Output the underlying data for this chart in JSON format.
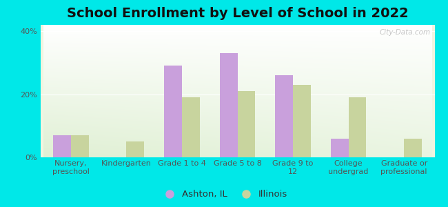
{
  "title": "School Enrollment by Level of School in 2022",
  "categories": [
    "Nursery,\npreschool",
    "Kindergarten",
    "Grade 1 to 4",
    "Grade 5 to 8",
    "Grade 9 to\n12",
    "College\nundergrad",
    "Graduate or\nprofessional"
  ],
  "ashton_values": [
    7,
    0,
    29,
    33,
    26,
    6,
    0
  ],
  "illinois_values": [
    7,
    5,
    19,
    21,
    23,
    19,
    6
  ],
  "ashton_color": "#c9a0dc",
  "illinois_color": "#c8d49e",
  "background_color": "#00e8e8",
  "ylim": [
    0,
    42
  ],
  "yticks": [
    0,
    20,
    40
  ],
  "ytick_labels": [
    "0%",
    "20%",
    "40%"
  ],
  "legend_labels": [
    "Ashton, IL",
    "Illinois"
  ],
  "watermark": "City-Data.com",
  "title_fontsize": 14,
  "tick_fontsize": 8,
  "legend_fontsize": 9.5,
  "bar_width": 0.32
}
